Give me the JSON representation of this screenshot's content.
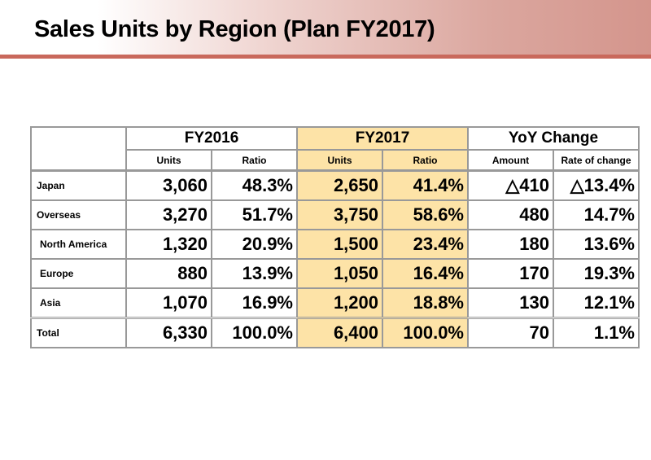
{
  "title": "Sales Units by Region (Plan FY2017)",
  "colors": {
    "highlight": "#fde3a7",
    "header_line": "#c9695c"
  },
  "table": {
    "groups": [
      "FY2016",
      "FY2017",
      "YoY Change"
    ],
    "subheaders": [
      "Units",
      "Ratio",
      "Units",
      "Ratio",
      "Amount",
      "Rate of change"
    ],
    "rows": [
      {
        "label": "Japan",
        "cells": [
          "3,060",
          "48.3%",
          "2,650",
          "41.4%",
          "△410",
          "△13.4%"
        ]
      },
      {
        "label": "Overseas",
        "cells": [
          "3,270",
          "51.7%",
          "3,750",
          "58.6%",
          "480",
          "14.7%"
        ]
      },
      {
        "label": "North America",
        "cells": [
          "1,320",
          "20.9%",
          "1,500",
          "23.4%",
          "180",
          "13.6%"
        ]
      },
      {
        "label": "Europe",
        "cells": [
          "880",
          "13.9%",
          "1,050",
          "16.4%",
          "170",
          "19.3%"
        ]
      },
      {
        "label": "Asia",
        "cells": [
          "1,070",
          "16.9%",
          "1,200",
          "18.8%",
          "130",
          "12.1%"
        ]
      },
      {
        "label": "Total",
        "cells": [
          "6,330",
          "100.0%",
          "6,400",
          "100.0%",
          "70",
          "1.1%"
        ]
      }
    ]
  }
}
